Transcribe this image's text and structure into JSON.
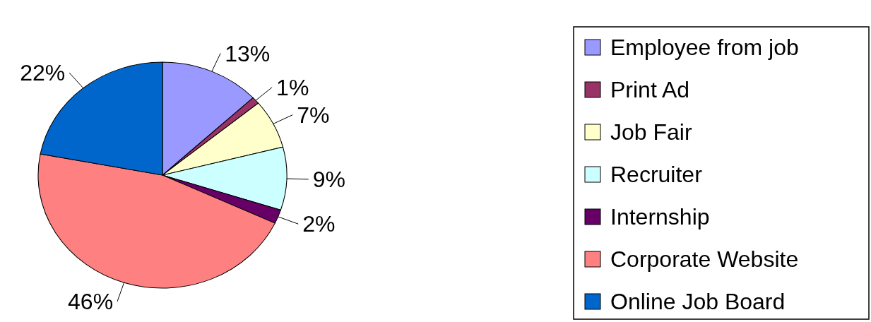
{
  "chart_data": {
    "type": "pie",
    "categories": [
      "Employee from job",
      "Print Ad",
      "Job Fair",
      "Recruiter",
      "Internship",
      "Corporate Website",
      "Online Job Board"
    ],
    "values": [
      13,
      1,
      7,
      9,
      2,
      46,
      22
    ],
    "colors": [
      "#9999ff",
      "#993366",
      "#ffffcc",
      "#ccffff",
      "#660066",
      "#ff8080",
      "#0066cc"
    ],
    "value_labels": [
      "13%",
      "1%",
      "7%",
      "9%",
      "2%",
      "46%",
      "22%"
    ],
    "legend": "right"
  }
}
